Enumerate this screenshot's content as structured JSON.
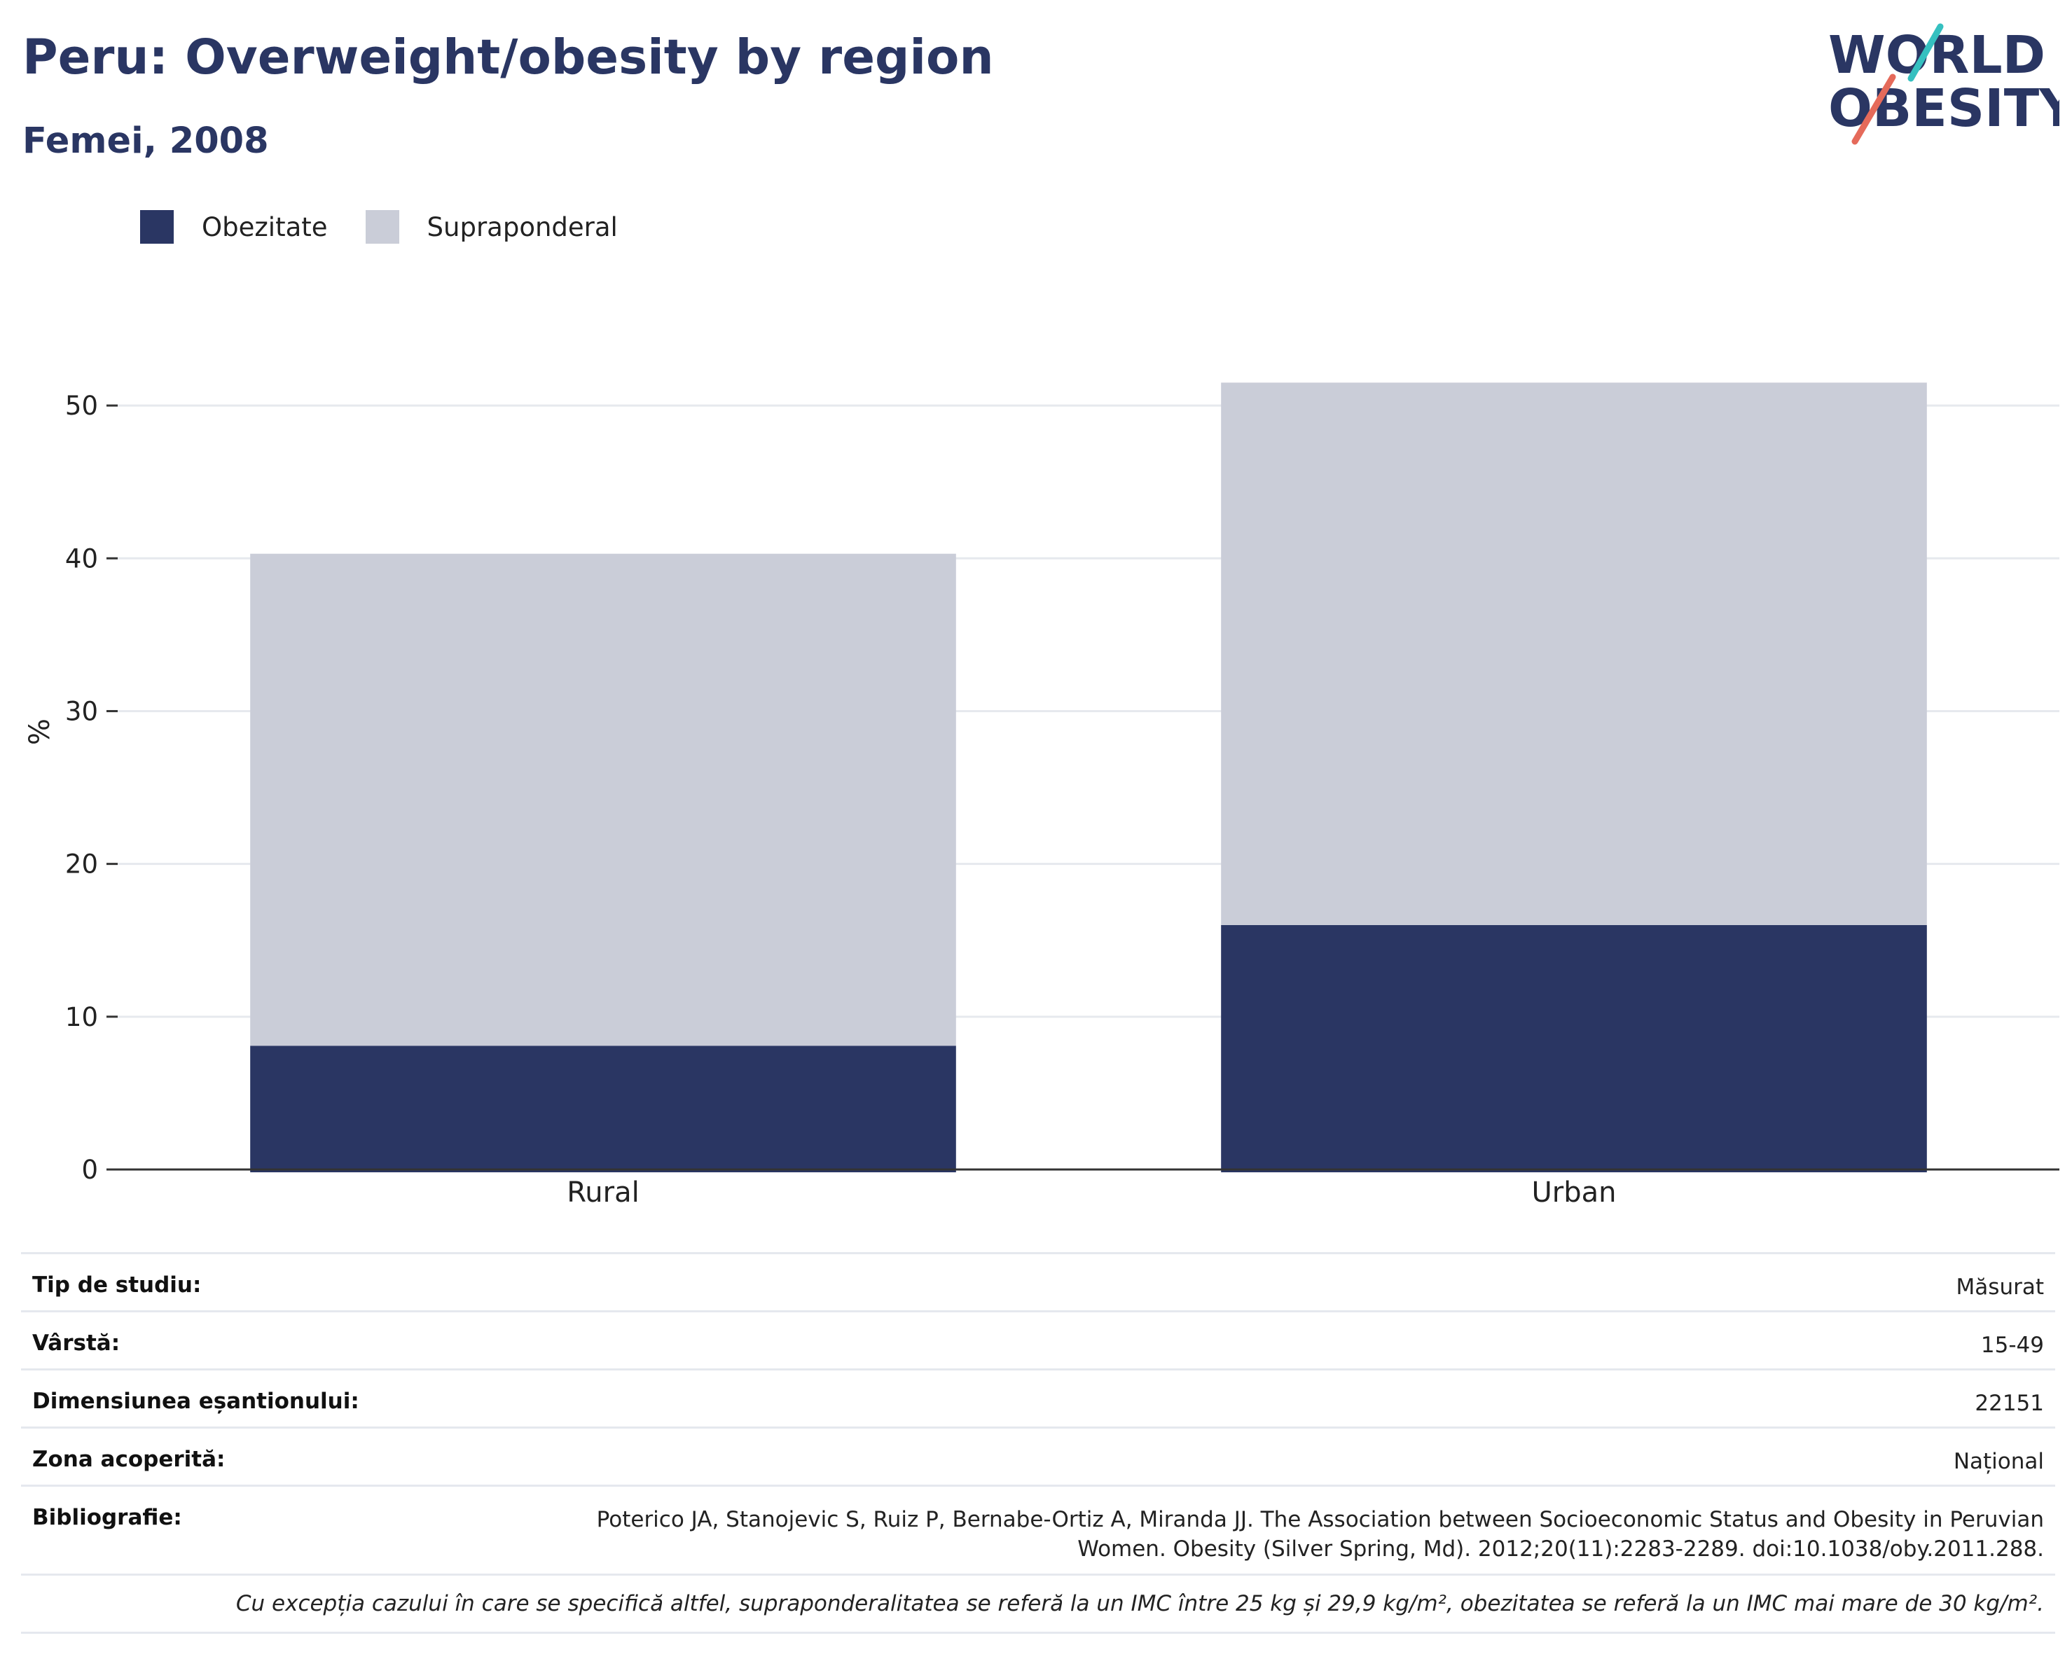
{
  "header": {
    "title": "Peru: Overweight/obesity by region",
    "subtitle": "Femei, 2008"
  },
  "logo": {
    "line1": "WORLD",
    "line2": "OBESITY"
  },
  "colors": {
    "obesity": "#2a3663",
    "overweight": "#cacdd8",
    "title": "#2a3663",
    "logo_teal": "#35c0c0",
    "logo_coral": "#e56a5a"
  },
  "legend": [
    {
      "label": "Obezitate",
      "color": "#2a3663"
    },
    {
      "label": "Supraponderal",
      "color": "#cacdd8"
    }
  ],
  "chart_data": {
    "type": "bar",
    "stacked": true,
    "categories": [
      "Rural",
      "Urban"
    ],
    "series": [
      {
        "name": "Obezitate",
        "values": [
          8.1,
          16.0
        ]
      },
      {
        "name": "Supraponderal",
        "values": [
          32.2,
          35.5
        ]
      }
    ],
    "ylabel": "%",
    "ylim": [
      0,
      55
    ],
    "yticks": [
      0,
      10,
      20,
      30,
      40,
      50
    ],
    "grid": true,
    "legend_position": "top-left"
  },
  "info": {
    "rows": [
      {
        "label": "Tip de studiu:",
        "value": "Măsurat"
      },
      {
        "label": "Vârstă:",
        "value": "15-49"
      },
      {
        "label": "Dimensiunea eșantionului:",
        "value": "22151"
      },
      {
        "label": "Zona acoperită:",
        "value": "Național"
      }
    ],
    "bibliography_label": "Bibliografie:",
    "bibliography_line1": "Poterico JA, Stanojevic S, Ruiz P, Bernabe-Ortiz A, Miranda JJ. The Association between Socioeconomic Status and Obesity in Peruvian",
    "bibliography_line2": "Women. Obesity (Silver Spring, Md). 2012;20(11):2283-2289. doi:10.1038/oby.2011.288.",
    "note": "Cu excepția cazului în care se specifică altfel, supraponderalitatea se referă la un IMC între 25 kg și 29,9 kg/m², obezitatea se referă la un IMC mai mare de 30 kg/m²."
  }
}
